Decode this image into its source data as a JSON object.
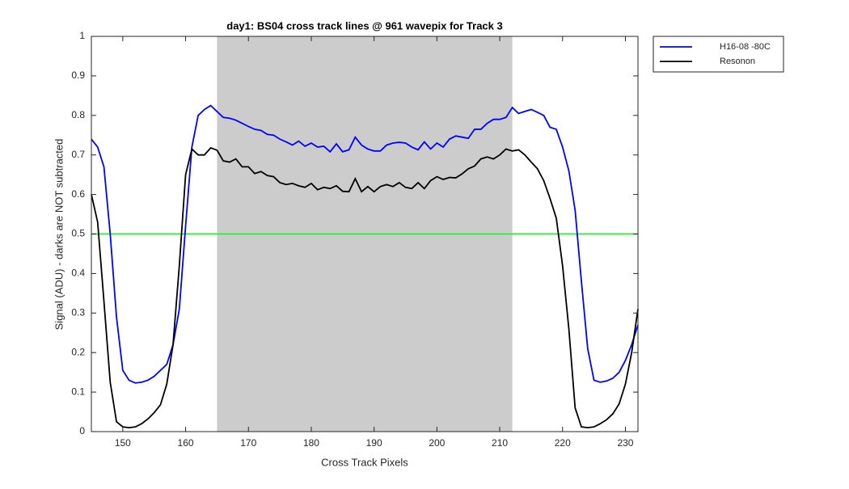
{
  "chart_data": {
    "type": "line",
    "title": "day1: BS04  cross track lines @ 961 wavepix for Track 3",
    "x_label": "Cross Track Pixels",
    "y_label": "Signal (ADU) - darks are NOT subtracted",
    "x": [
      145,
      146,
      147,
      148,
      149,
      150,
      151,
      152,
      153,
      154,
      155,
      156,
      157,
      158,
      159,
      160,
      161,
      162,
      163,
      164,
      165,
      166,
      167,
      168,
      169,
      170,
      171,
      172,
      173,
      174,
      175,
      176,
      177,
      178,
      179,
      180,
      181,
      182,
      183,
      184,
      185,
      186,
      187,
      188,
      189,
      190,
      191,
      192,
      193,
      194,
      195,
      196,
      197,
      198,
      199,
      200,
      201,
      202,
      203,
      204,
      205,
      206,
      207,
      208,
      209,
      210,
      211,
      212,
      213,
      214,
      215,
      216,
      217,
      218,
      219,
      220,
      221,
      222,
      223,
      224,
      225,
      226,
      227,
      228,
      229,
      230,
      231,
      232
    ],
    "series": [
      {
        "name": "H16-08 -80C",
        "color": "#0000ff",
        "values": [
          0.74,
          0.72,
          0.67,
          0.5,
          0.29,
          0.155,
          0.13,
          0.123,
          0.125,
          0.13,
          0.14,
          0.155,
          0.17,
          0.22,
          0.31,
          0.52,
          0.72,
          0.8,
          0.815,
          0.825,
          0.81,
          0.795,
          0.793,
          0.788,
          0.78,
          0.772,
          0.765,
          0.762,
          0.752,
          0.75,
          0.74,
          0.733,
          0.725,
          0.735,
          0.722,
          0.73,
          0.72,
          0.722,
          0.708,
          0.728,
          0.708,
          0.713,
          0.745,
          0.725,
          0.715,
          0.71,
          0.71,
          0.725,
          0.73,
          0.732,
          0.73,
          0.72,
          0.713,
          0.733,
          0.715,
          0.73,
          0.72,
          0.74,
          0.748,
          0.745,
          0.742,
          0.765,
          0.765,
          0.78,
          0.79,
          0.79,
          0.795,
          0.82,
          0.805,
          0.81,
          0.815,
          0.808,
          0.8,
          0.77,
          0.765,
          0.72,
          0.66,
          0.56,
          0.38,
          0.21,
          0.13,
          0.125,
          0.128,
          0.135,
          0.15,
          0.18,
          0.22,
          0.27
        ]
      },
      {
        "name": "Resonon",
        "color": "#000000",
        "values": [
          0.6,
          0.53,
          0.33,
          0.125,
          0.025,
          0.012,
          0.01,
          0.012,
          0.02,
          0.032,
          0.048,
          0.068,
          0.12,
          0.22,
          0.42,
          0.65,
          0.715,
          0.7,
          0.7,
          0.718,
          0.712,
          0.685,
          0.682,
          0.69,
          0.67,
          0.67,
          0.653,
          0.658,
          0.648,
          0.645,
          0.63,
          0.625,
          0.628,
          0.622,
          0.618,
          0.628,
          0.612,
          0.618,
          0.615,
          0.622,
          0.608,
          0.607,
          0.64,
          0.607,
          0.62,
          0.607,
          0.62,
          0.625,
          0.62,
          0.63,
          0.618,
          0.615,
          0.63,
          0.615,
          0.635,
          0.645,
          0.638,
          0.643,
          0.642,
          0.652,
          0.665,
          0.672,
          0.69,
          0.695,
          0.69,
          0.7,
          0.715,
          0.71,
          0.713,
          0.7,
          0.682,
          0.665,
          0.635,
          0.59,
          0.54,
          0.42,
          0.26,
          0.06,
          0.012,
          0.01,
          0.012,
          0.02,
          0.03,
          0.045,
          0.07,
          0.12,
          0.2,
          0.31
        ]
      }
    ],
    "highlight_xrange": [
      165,
      212
    ],
    "highlight_color": "#cccccc",
    "reference_line": 0.5,
    "reference_color": "#00ff00",
    "xlim": [
      145,
      232
    ],
    "ylim": [
      0,
      1
    ],
    "xticks": [
      150,
      160,
      170,
      180,
      190,
      200,
      210,
      220,
      230
    ],
    "yticks": [
      0,
      0.1,
      0.2,
      0.3,
      0.4,
      0.5,
      0.6,
      0.7,
      0.8,
      0.9,
      1
    ],
    "legend": "outside-top-right"
  }
}
